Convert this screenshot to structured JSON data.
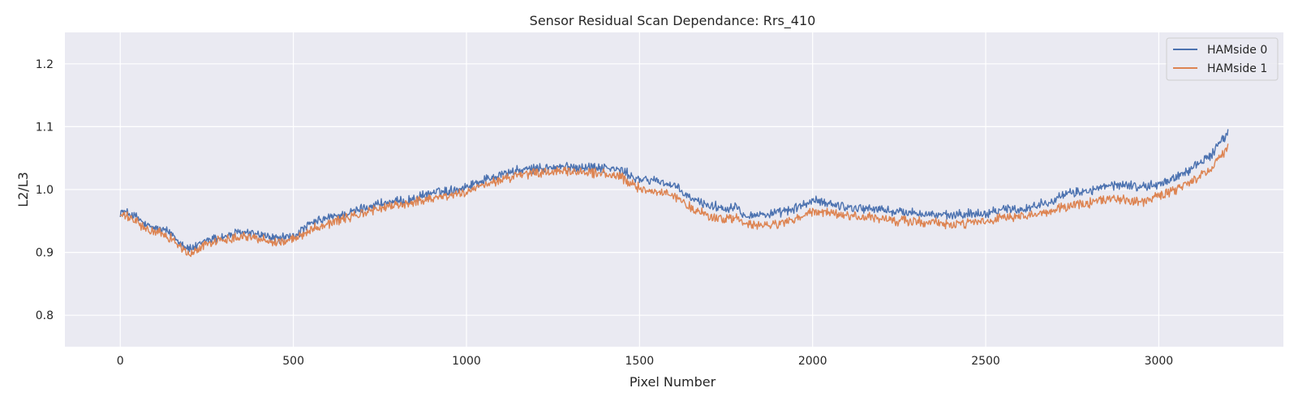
{
  "chart_data": {
    "type": "line",
    "title": "Sensor Residual Scan Dependance: Rrs_410",
    "xlabel": "Pixel Number",
    "ylabel": "L2/L3",
    "xlim": [
      -160,
      3360
    ],
    "ylim": [
      0.75,
      1.25
    ],
    "xticks": [
      0,
      500,
      1000,
      1500,
      2000,
      2500,
      3000
    ],
    "yticks": [
      0.8,
      0.9,
      1.0,
      1.1,
      1.2
    ],
    "yticklabels": [
      "0.8",
      "0.9",
      "1.0",
      "1.1",
      "1.2"
    ],
    "grid": true,
    "legend_position": "top-right",
    "background": "#eaeaf2",
    "series": [
      {
        "name": "HAMside 0",
        "color": "#4c72b0",
        "x": [
          0,
          25,
          50,
          75,
          100,
          125,
          150,
          175,
          200,
          225,
          250,
          300,
          350,
          400,
          450,
          500,
          550,
          600,
          650,
          700,
          750,
          800,
          850,
          900,
          950,
          1000,
          1050,
          1100,
          1150,
          1200,
          1250,
          1300,
          1350,
          1400,
          1450,
          1480,
          1500,
          1550,
          1600,
          1650,
          1700,
          1750,
          1780,
          1800,
          1850,
          1900,
          1950,
          2000,
          2050,
          2100,
          2150,
          2200,
          2250,
          2300,
          2350,
          2400,
          2450,
          2500,
          2550,
          2600,
          2650,
          2700,
          2750,
          2800,
          2850,
          2900,
          2950,
          3000,
          3050,
          3100,
          3150,
          3200
        ],
        "y": [
          0.965,
          0.962,
          0.955,
          0.942,
          0.938,
          0.935,
          0.93,
          0.915,
          0.905,
          0.91,
          0.92,
          0.925,
          0.932,
          0.928,
          0.922,
          0.925,
          0.945,
          0.955,
          0.96,
          0.97,
          0.978,
          0.98,
          0.985,
          0.995,
          0.998,
          1.005,
          1.015,
          1.025,
          1.03,
          1.033,
          1.035,
          1.036,
          1.036,
          1.035,
          1.03,
          1.02,
          1.015,
          1.015,
          1.005,
          0.985,
          0.975,
          0.97,
          0.975,
          0.96,
          0.96,
          0.962,
          0.97,
          0.982,
          0.978,
          0.972,
          0.97,
          0.968,
          0.964,
          0.963,
          0.96,
          0.958,
          0.962,
          0.962,
          0.97,
          0.968,
          0.975,
          0.985,
          0.995,
          0.998,
          1.005,
          1.008,
          1.004,
          1.008,
          1.02,
          1.035,
          1.055,
          1.09
        ]
      },
      {
        "name": "HAMside 1",
        "color": "#dd8452",
        "x": [
          0,
          25,
          50,
          75,
          100,
          125,
          150,
          175,
          200,
          225,
          250,
          300,
          350,
          400,
          450,
          500,
          550,
          600,
          650,
          700,
          750,
          800,
          850,
          900,
          950,
          1000,
          1050,
          1100,
          1150,
          1200,
          1250,
          1300,
          1350,
          1400,
          1450,
          1480,
          1500,
          1550,
          1600,
          1650,
          1700,
          1750,
          1780,
          1800,
          1850,
          1900,
          1950,
          2000,
          2050,
          2100,
          2150,
          2200,
          2250,
          2300,
          2350,
          2400,
          2450,
          2500,
          2550,
          2600,
          2650,
          2700,
          2750,
          2800,
          2850,
          2900,
          2950,
          3000,
          3050,
          3100,
          3150,
          3200
        ],
        "y": [
          0.96,
          0.955,
          0.948,
          0.935,
          0.933,
          0.928,
          0.922,
          0.908,
          0.895,
          0.905,
          0.915,
          0.92,
          0.927,
          0.922,
          0.916,
          0.92,
          0.937,
          0.946,
          0.954,
          0.962,
          0.97,
          0.975,
          0.98,
          0.987,
          0.99,
          0.996,
          1.006,
          1.016,
          1.022,
          1.026,
          1.028,
          1.028,
          1.028,
          1.025,
          1.018,
          1.008,
          1.002,
          0.997,
          0.99,
          0.97,
          0.958,
          0.952,
          0.956,
          0.945,
          0.942,
          0.945,
          0.952,
          0.965,
          0.962,
          0.958,
          0.956,
          0.953,
          0.95,
          0.949,
          0.948,
          0.943,
          0.947,
          0.948,
          0.955,
          0.955,
          0.96,
          0.968,
          0.975,
          0.978,
          0.985,
          0.985,
          0.98,
          0.99,
          1.0,
          1.012,
          1.035,
          1.068
        ]
      }
    ]
  }
}
